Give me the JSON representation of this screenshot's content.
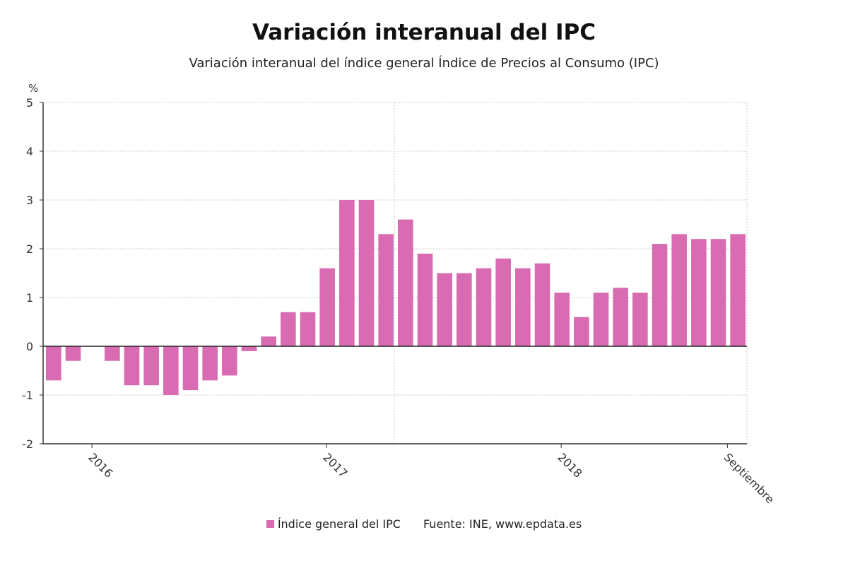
{
  "chart_data": {
    "type": "bar",
    "title": "Variación interanual del IPC",
    "subtitle": "Variación interanual del índice general Índice de Precios al Consumo (IPC)",
    "ylabel": "%",
    "ylim": [
      -2,
      5
    ],
    "yticks": [
      "5",
      "4",
      "3",
      "2",
      "1",
      "0",
      "-1",
      "-2"
    ],
    "xtick_labels": [
      "2016",
      "2017",
      "2018",
      "Septiembre"
    ],
    "grid": true,
    "color": "#d86bb1",
    "series": [
      {
        "name": "Índice general del IPC",
        "values": [
          -0.7,
          -0.3,
          0.0,
          -0.3,
          -0.8,
          -0.8,
          -1.0,
          -0.9,
          -0.7,
          -0.6,
          -0.1,
          0.2,
          0.7,
          0.7,
          1.6,
          3.0,
          3.0,
          2.3,
          2.6,
          1.9,
          1.5,
          1.5,
          1.6,
          1.8,
          1.6,
          1.7,
          1.1,
          0.6,
          1.1,
          1.2,
          1.1,
          2.1,
          2.3,
          2.2,
          2.2,
          2.3
        ]
      }
    ],
    "source": "Fuente: INE, www.epdata.es"
  }
}
